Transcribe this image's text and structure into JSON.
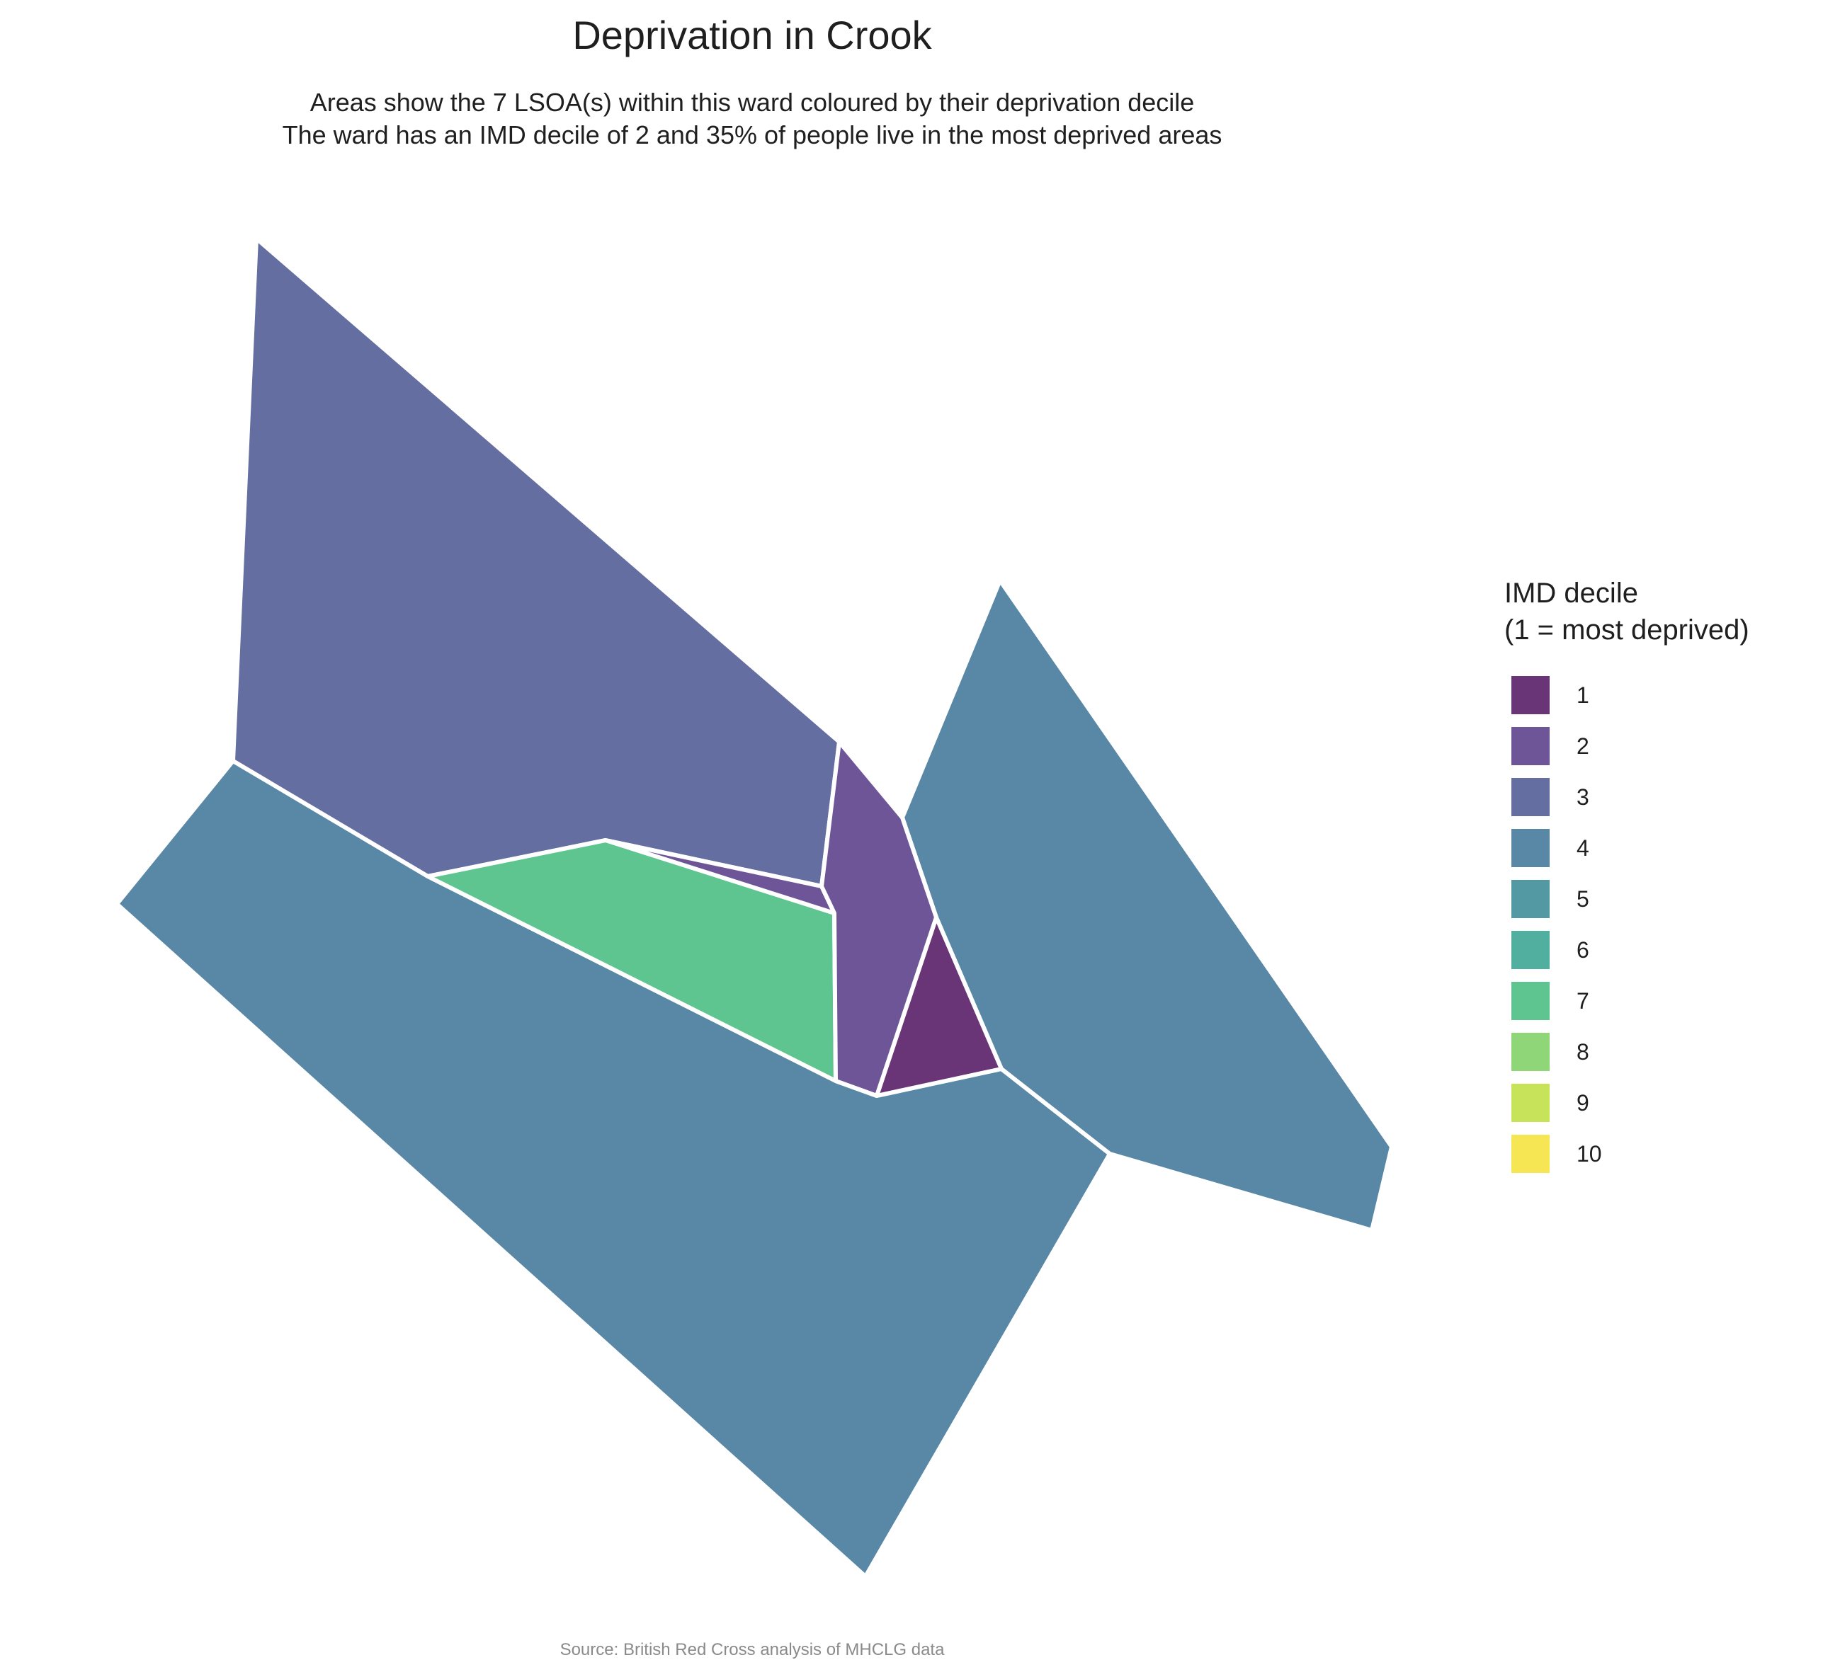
{
  "title": "Deprivation in Crook",
  "subtitle_line1": "Areas show the 7 LSOA(s) within this ward coloured by their deprivation decile",
  "subtitle_line2": "The ward has an IMD decile of 2 and 35% of people live in the most deprived areas",
  "caption": "Source: British Red Cross analysis of MHCLG data",
  "legend": {
    "title_line1": "IMD decile",
    "title_line2": "(1 = most deprived)",
    "items": [
      {
        "label": "1",
        "color": "#6a3577"
      },
      {
        "label": "2",
        "color": "#6e5597"
      },
      {
        "label": "3",
        "color": "#646ea0"
      },
      {
        "label": "4",
        "color": "#5987a6"
      },
      {
        "label": "5",
        "color": "#5399a4"
      },
      {
        "label": "6",
        "color": "#50af9e"
      },
      {
        "label": "7",
        "color": "#5ec591"
      },
      {
        "label": "8",
        "color": "#8ed678"
      },
      {
        "label": "9",
        "color": "#c6e35a"
      },
      {
        "label": "10",
        "color": "#f6e653"
      }
    ]
  },
  "map_areas": [
    {
      "name": "north-west area",
      "decile": 3
    },
    {
      "name": "southern area",
      "decile": 4
    },
    {
      "name": "eastern area",
      "decile": 4
    },
    {
      "name": "central area",
      "decile": 7
    },
    {
      "name": "small sliver area",
      "decile": 2
    },
    {
      "name": "narrow central area",
      "decile": 2
    },
    {
      "name": "small triangular area",
      "decile": 1
    }
  ]
}
